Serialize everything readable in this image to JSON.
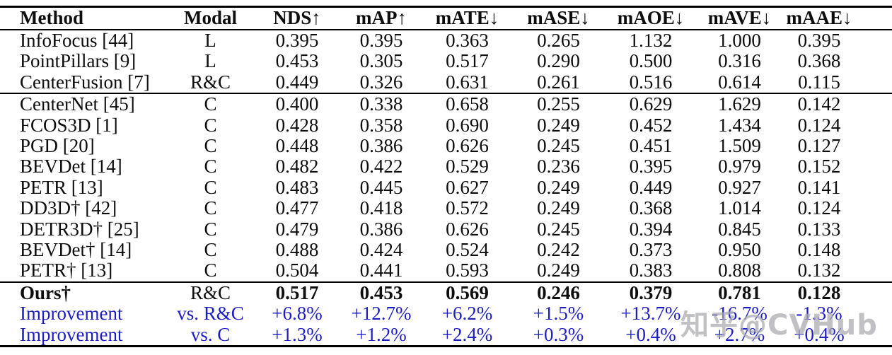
{
  "colors": {
    "background": "#ffffff",
    "text": "#0d0d0d",
    "rule": "#000000",
    "accent_blue": "#1d1dc4",
    "watermark_gray": "#a9a9af"
  },
  "watermark": {
    "text": "知乎@CVHub"
  },
  "table": {
    "columns": [
      {
        "label": "Method"
      },
      {
        "label": "Modal"
      },
      {
        "label": "NDS↑"
      },
      {
        "label": "mAP↑"
      },
      {
        "label": "mATE↓"
      },
      {
        "label": "mASE↓"
      },
      {
        "label": "mAOE↓"
      },
      {
        "label": "mAVE↓"
      },
      {
        "label": "mAAE↓"
      }
    ],
    "sections": [
      {
        "name": "lidar-radar-methods",
        "rows": [
          {
            "method": "InfoFocus [44]",
            "modal": "L",
            "values": [
              "0.395",
              "0.395",
              "0.363",
              "0.265",
              "1.132",
              "1.000",
              "0.395"
            ],
            "style": "normal"
          },
          {
            "method": "PointPillars [9]",
            "modal": "L",
            "values": [
              "0.453",
              "0.305",
              "0.517",
              "0.290",
              "0.500",
              "0.316",
              "0.368"
            ],
            "style": "normal"
          },
          {
            "method": "CenterFusion [7]",
            "modal": "R&C",
            "values": [
              "0.449",
              "0.326",
              "0.631",
              "0.261",
              "0.516",
              "0.614",
              "0.115"
            ],
            "style": "normal"
          }
        ]
      },
      {
        "name": "camera-methods",
        "rows": [
          {
            "method": "CenterNet [45]",
            "modal": "C",
            "values": [
              "0.400",
              "0.338",
              "0.658",
              "0.255",
              "0.629",
              "1.629",
              "0.142"
            ],
            "style": "normal"
          },
          {
            "method": "FCOS3D [1]",
            "modal": "C",
            "values": [
              "0.428",
              "0.358",
              "0.690",
              "0.249",
              "0.452",
              "1.434",
              "0.124"
            ],
            "style": "normal"
          },
          {
            "method": "PGD [20]",
            "modal": "C",
            "values": [
              "0.448",
              "0.386",
              "0.626",
              "0.245",
              "0.451",
              "1.509",
              "0.127"
            ],
            "style": "normal"
          },
          {
            "method": "BEVDet [14]",
            "modal": "C",
            "values": [
              "0.482",
              "0.422",
              "0.529",
              "0.236",
              "0.395",
              "0.979",
              "0.152"
            ],
            "style": "normal"
          },
          {
            "method": "PETR [13]",
            "modal": "C",
            "values": [
              "0.483",
              "0.445",
              "0.627",
              "0.249",
              "0.449",
              "0.927",
              "0.141"
            ],
            "style": "normal"
          },
          {
            "method": "DD3D† [42]",
            "modal": "C",
            "values": [
              "0.477",
              "0.418",
              "0.572",
              "0.249",
              "0.368",
              "1.014",
              "0.124"
            ],
            "style": "normal"
          },
          {
            "method": "DETR3D† [25]",
            "modal": "C",
            "values": [
              "0.479",
              "0.386",
              "0.626",
              "0.245",
              "0.394",
              "0.845",
              "0.133"
            ],
            "style": "normal"
          },
          {
            "method": "BEVDet† [14]",
            "modal": "C",
            "values": [
              "0.488",
              "0.424",
              "0.524",
              "0.242",
              "0.373",
              "0.950",
              "0.148"
            ],
            "style": "normal"
          },
          {
            "method": "PETR† [13]",
            "modal": "C",
            "values": [
              "0.504",
              "0.441",
              "0.593",
              "0.249",
              "0.383",
              "0.808",
              "0.132"
            ],
            "style": "normal"
          }
        ]
      },
      {
        "name": "ours-and-improvement",
        "rows": [
          {
            "method": "Ours†",
            "modal": "R&C",
            "values": [
              "0.517",
              "0.453",
              "0.569",
              "0.246",
              "0.379",
              "0.781",
              "0.128"
            ],
            "style": "ours"
          },
          {
            "method": "Improvement",
            "modal": "vs. R&C",
            "values": [
              "+6.8%",
              "+12.7%",
              "+6.2%",
              "+1.5%",
              "+13.7%",
              "-16.7%",
              "-1.3%"
            ],
            "style": "improvement"
          },
          {
            "method": "Improvement",
            "modal": "vs. C",
            "values": [
              "+1.3%",
              "+1.2%",
              "+2.4%",
              "+0.3%",
              "+0.4%",
              "+2.7%",
              "+0.4%"
            ],
            "style": "improvement"
          }
        ]
      }
    ]
  }
}
